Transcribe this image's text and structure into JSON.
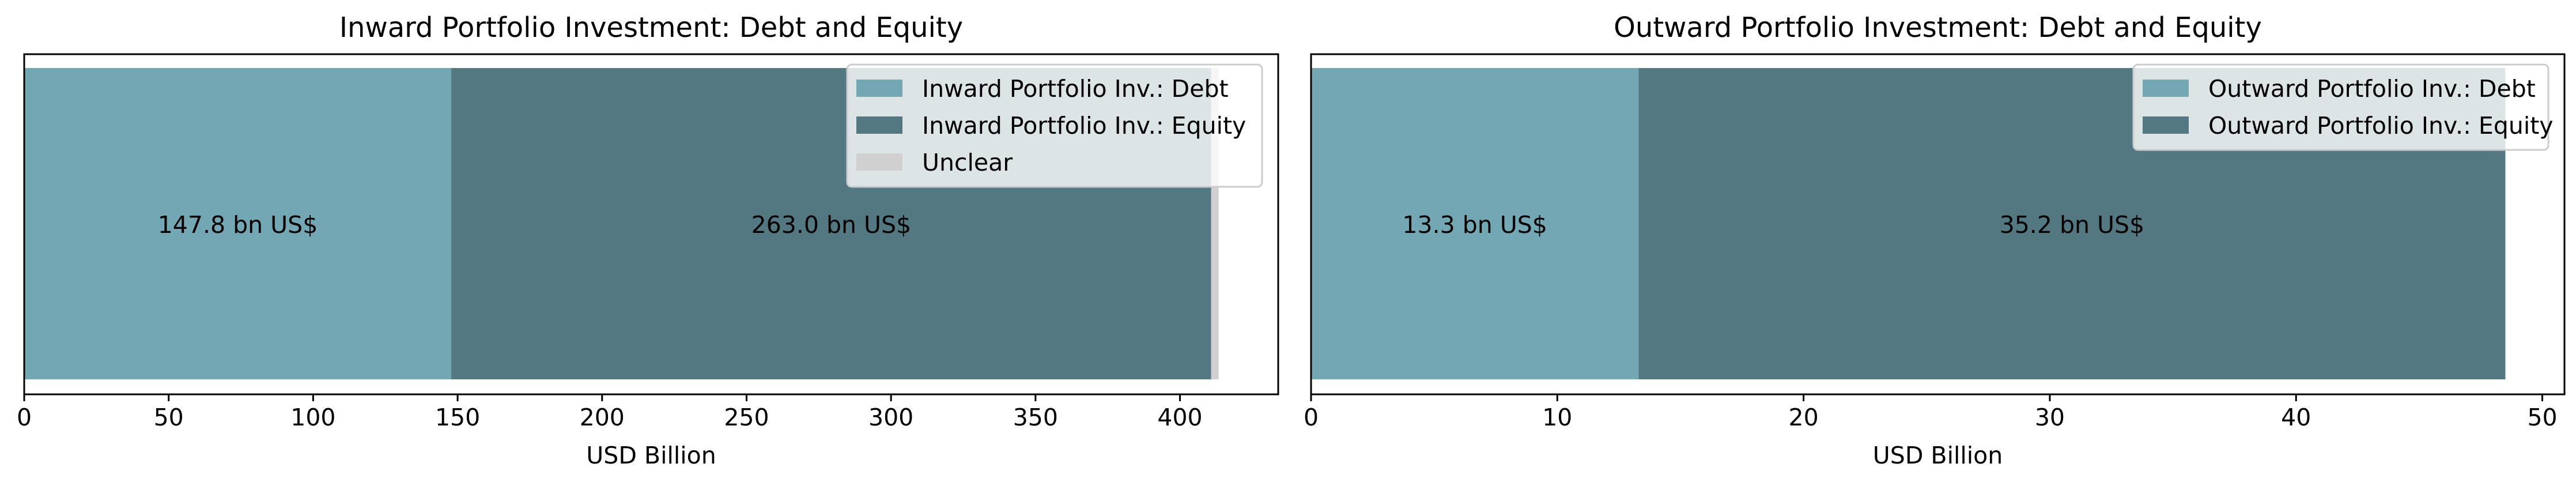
{
  "chart_data": [
    {
      "type": "bar",
      "orientation": "horizontal",
      "stacked": true,
      "title": "Inward Portfolio Investment: Debt and Equity",
      "xlabel": "USD Billion",
      "ylabel": "",
      "xlim": [
        0,
        434
      ],
      "xticks": [
        0,
        50,
        100,
        150,
        200,
        250,
        300,
        350,
        400
      ],
      "legend_position": "top-right",
      "series": [
        {
          "name": "Inward Portfolio Inv.: Debt",
          "value": 147.8,
          "label": "147.8 bn US$",
          "color": "#73a7b4"
        },
        {
          "name": "Inward Portfolio Inv.: Equity",
          "value": 263.0,
          "label": "263.0 bn US$",
          "color": "#537882"
        },
        {
          "name": "Unclear",
          "value": 2.6,
          "label": "",
          "color": "#d0d0d0"
        }
      ]
    },
    {
      "type": "bar",
      "orientation": "horizontal",
      "stacked": true,
      "title": "Outward Portfolio Investment: Debt and Equity",
      "xlabel": "USD Billion",
      "ylabel": "",
      "xlim": [
        0,
        50.9
      ],
      "xticks": [
        0,
        10,
        20,
        30,
        40,
        50
      ],
      "legend_position": "top-right",
      "series": [
        {
          "name": "Outward Portfolio Inv.: Debt",
          "value": 13.3,
          "label": "13.3 bn US$",
          "color": "#73a7b4"
        },
        {
          "name": "Outward Portfolio Inv.: Equity",
          "value": 35.2,
          "label": "35.2 bn US$",
          "color": "#537882"
        }
      ]
    }
  ]
}
